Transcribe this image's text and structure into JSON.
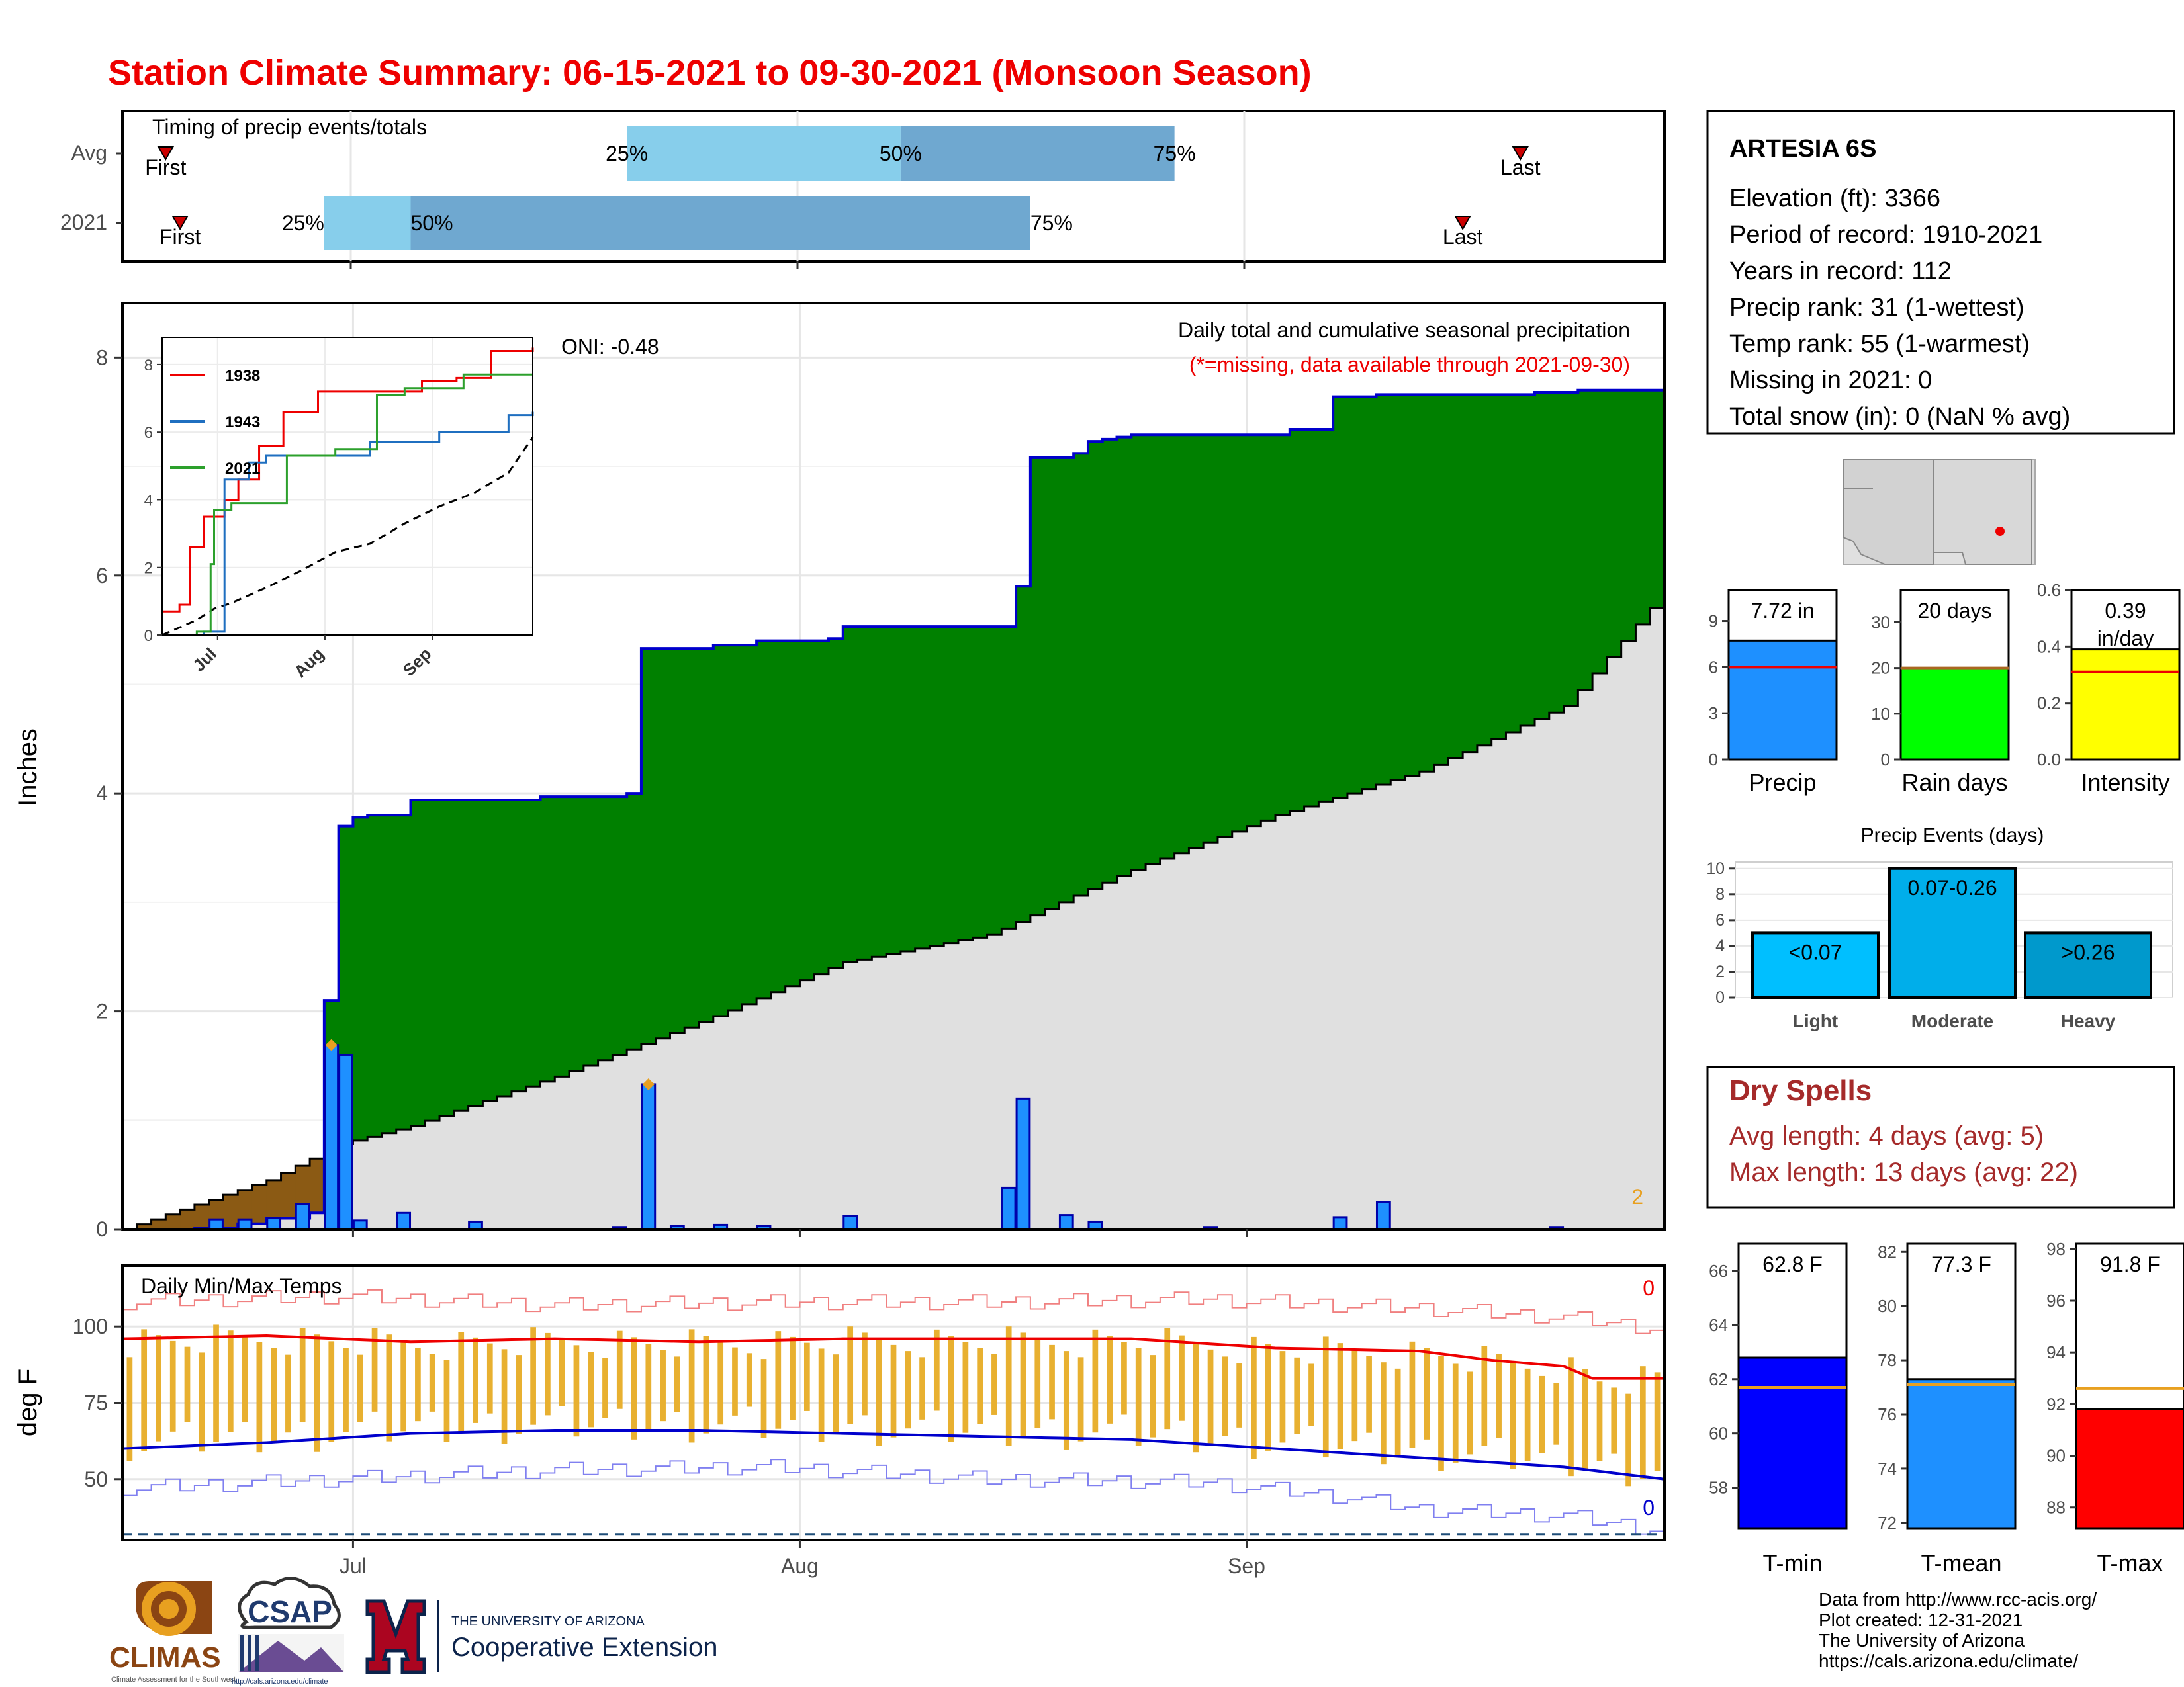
{
  "title": "Station Climate Summary: 06-15-2021 to 09-30-2021 (Monsoon Season)",
  "colors": {
    "title": "#ee0000",
    "accum_fill": "#008000",
    "avg_fill": "#e0e0e0",
    "daily_bar": "#1e90ff",
    "brown": "#8b5a14",
    "bar_orange": "#e8b030",
    "tmax_line": "#ee0000",
    "tmin_line": "#0000cc",
    "q_light": "#87ceeb",
    "q_dark": "#6fa8d0",
    "dry_red": "#a52a2a"
  },
  "timing": {
    "title": "Timing of precip events/totals",
    "rows": [
      {
        "label": "Avg",
        "first": "First",
        "last": "Last",
        "q25": "25%",
        "q50": "50%",
        "q75": "75%",
        "first_date": "2021-06-18",
        "q25_date": "2021-07-20",
        "q50_date": "2021-08-08",
        "q75_date": "2021-08-27",
        "last_date": "2021-09-20"
      },
      {
        "label": "2021",
        "first": "First",
        "last": "Last",
        "q25": "25%",
        "q50": "50%",
        "q75": "75%",
        "first_date": "2021-06-19",
        "q25_date": "2021-06-29",
        "q50_date": "2021-07-05",
        "q75_date": "2021-08-17",
        "last_date": "2021-09-16"
      }
    ]
  },
  "main_chart": {
    "ylabel": "Inches",
    "ticks": [
      "0",
      "2",
      "4",
      "6",
      "8"
    ],
    "oni": "ONI: -0.48",
    "subtitle": "Daily total and cumulative seasonal precipitation",
    "missing_note": "(*=missing, data available through 2021-09-30)",
    "corner_count": "2",
    "x_ticks": [
      "Jul",
      "Aug",
      "Sep"
    ]
  },
  "chart_data": [
    {
      "type": "area",
      "title": "Daily total and cumulative seasonal precipitation",
      "ylabel": "Inches",
      "ylim": [
        0,
        8.5
      ],
      "x_range": [
        "2021-06-15",
        "2021-09-30"
      ],
      "cumulative_2021": [
        [
          0,
          0
        ],
        [
          5,
          0.01
        ],
        [
          8,
          0.05
        ],
        [
          10,
          0.1
        ],
        [
          13,
          0.15
        ],
        [
          14,
          2.1
        ],
        [
          15,
          3.7
        ],
        [
          16,
          3.78
        ],
        [
          17,
          3.8
        ],
        [
          20,
          3.94
        ],
        [
          29,
          3.97
        ],
        [
          35,
          4.0
        ],
        [
          36,
          5.33
        ],
        [
          41,
          5.36
        ],
        [
          44,
          5.4
        ],
        [
          49,
          5.42
        ],
        [
          50,
          5.53
        ],
        [
          61,
          5.53
        ],
        [
          62,
          5.9
        ],
        [
          63,
          7.08
        ],
        [
          66,
          7.12
        ],
        [
          67,
          7.23
        ],
        [
          68,
          7.25
        ],
        [
          69,
          7.27
        ],
        [
          70,
          7.29
        ],
        [
          81,
          7.34
        ],
        [
          84,
          7.64
        ],
        [
          87,
          7.66
        ],
        [
          98,
          7.68
        ],
        [
          101,
          7.7
        ],
        [
          107,
          7.72
        ]
      ],
      "normal_cumulative": [
        [
          0,
          0
        ],
        [
          10,
          0.45
        ],
        [
          15,
          0.78
        ],
        [
          20,
          0.95
        ],
        [
          30,
          1.4
        ],
        [
          40,
          1.9
        ],
        [
          50,
          2.45
        ],
        [
          60,
          2.7
        ],
        [
          70,
          3.3
        ],
        [
          80,
          3.8
        ],
        [
          90,
          4.2
        ],
        [
          100,
          4.8
        ],
        [
          107,
          5.85
        ]
      ],
      "daily_precip": [
        [
          5,
          0.01
        ],
        [
          6,
          0.09
        ],
        [
          8,
          0.09
        ],
        [
          10,
          0.1
        ],
        [
          12,
          0.23
        ],
        [
          14,
          1.69
        ],
        [
          15,
          1.6
        ],
        [
          16,
          0.08
        ],
        [
          19,
          0.15
        ],
        [
          24,
          0.07
        ],
        [
          34,
          0.02
        ],
        [
          36,
          1.33
        ],
        [
          38,
          0.03
        ],
        [
          41,
          0.04
        ],
        [
          44,
          0.03
        ],
        [
          50,
          0.12
        ],
        [
          61,
          0.38
        ],
        [
          62,
          1.2
        ],
        [
          65,
          0.13
        ],
        [
          67,
          0.07
        ],
        [
          75,
          0.02
        ],
        [
          84,
          0.11
        ],
        [
          87,
          0.25
        ],
        [
          99,
          0.02
        ]
      ]
    },
    {
      "type": "line",
      "title": "Daily Min/Max Temps",
      "ylabel": "deg F",
      "ylim": [
        30,
        120
      ],
      "yticks": [
        50,
        75,
        100
      ],
      "count_max": "0",
      "count_min": "0",
      "tmax_avg_smooth": [
        [
          0,
          96
        ],
        [
          10,
          97
        ],
        [
          20,
          95
        ],
        [
          30,
          96
        ],
        [
          40,
          95
        ],
        [
          50,
          96
        ],
        [
          60,
          96
        ],
        [
          70,
          96
        ],
        [
          80,
          93
        ],
        [
          90,
          92
        ],
        [
          95,
          89
        ],
        [
          100,
          87
        ],
        [
          102,
          83
        ],
        [
          107,
          83
        ]
      ],
      "tmin_avg_smooth": [
        [
          0,
          60
        ],
        [
          10,
          62
        ],
        [
          20,
          65
        ],
        [
          30,
          66
        ],
        [
          40,
          66
        ],
        [
          50,
          65
        ],
        [
          60,
          64
        ],
        [
          70,
          63
        ],
        [
          80,
          60
        ],
        [
          90,
          57
        ],
        [
          100,
          54
        ],
        [
          107,
          50
        ]
      ],
      "tmax_record": [
        [
          0,
          108
        ],
        [
          15,
          110
        ],
        [
          30,
          107
        ],
        [
          45,
          108
        ],
        [
          60,
          108
        ],
        [
          75,
          109
        ],
        [
          90,
          106
        ],
        [
          100,
          103
        ],
        [
          107,
          99
        ]
      ],
      "tmin_record": [
        [
          0,
          47
        ],
        [
          15,
          50
        ],
        [
          30,
          53
        ],
        [
          45,
          54
        ],
        [
          60,
          50
        ],
        [
          75,
          49
        ],
        [
          85,
          44
        ],
        [
          90,
          40
        ],
        [
          100,
          38
        ],
        [
          107,
          33
        ]
      ],
      "freeze_line": 32
    },
    {
      "type": "line",
      "title": "Cumulative precipitation comparison",
      "series": [
        {
          "name": "1938",
          "points": [
            [
              0,
              0.7
            ],
            [
              5,
              0.9
            ],
            [
              8,
              2.6
            ],
            [
              12,
              3.5
            ],
            [
              18,
              4.0
            ],
            [
              22,
              4.6
            ],
            [
              28,
              5.6
            ],
            [
              35,
              6.6
            ],
            [
              45,
              7.2
            ],
            [
              75,
              7.5
            ],
            [
              85,
              7.6
            ],
            [
              95,
              8.4
            ],
            [
              107,
              8.5
            ]
          ]
        },
        {
          "name": "1943",
          "points": [
            [
              0,
              0
            ],
            [
              12,
              0.1
            ],
            [
              18,
              4.6
            ],
            [
              25,
              5.1
            ],
            [
              30,
              5.3
            ],
            [
              45,
              5.3
            ],
            [
              60,
              5.7
            ],
            [
              80,
              6.0
            ],
            [
              100,
              6.5
            ],
            [
              107,
              6.6
            ]
          ]
        },
        {
          "name": "2021",
          "points": [
            [
              0,
              0
            ],
            [
              10,
              0.1
            ],
            [
              14,
              2.1
            ],
            [
              15,
              3.7
            ],
            [
              20,
              3.9
            ],
            [
              36,
              5.3
            ],
            [
              50,
              5.5
            ],
            [
              62,
              7.1
            ],
            [
              70,
              7.3
            ],
            [
              87,
              7.7
            ],
            [
              107,
              7.7
            ]
          ]
        }
      ],
      "x_ticks": [
        "Jul",
        "Aug",
        "Sep"
      ],
      "y_ticks": [
        "0",
        "2",
        "4",
        "6",
        "8"
      ]
    },
    {
      "type": "bar",
      "title": "Precip",
      "value": 7.72,
      "value_label": "7.72 in",
      "avg": 6.0,
      "ylim": [
        0,
        11
      ],
      "yticks": [
        "0",
        "3",
        "6",
        "9"
      ]
    },
    {
      "type": "bar",
      "title": "Rain days",
      "value": 20,
      "value_label": "20 days",
      "avg": 20,
      "ylim": [
        0,
        37
      ],
      "yticks": [
        "0",
        "10",
        "20",
        "30"
      ]
    },
    {
      "type": "bar",
      "title": "Intensity",
      "value": 0.39,
      "value_label": "0.39 in/day",
      "avg": 0.31,
      "ylim": [
        0,
        0.6
      ],
      "yticks": [
        "0.0",
        "0.2",
        "0.4",
        "0.6"
      ]
    },
    {
      "type": "bar",
      "title": "Precip Events (days)",
      "categories": [
        "Light",
        "Moderate",
        "Heavy"
      ],
      "labels": [
        "<0.07",
        "0.07-0.26",
        ">0.26"
      ],
      "values": [
        5,
        10,
        5
      ],
      "ylim": [
        0,
        10.5
      ],
      "yticks": [
        "0",
        "2",
        "4",
        "6",
        "8",
        "10"
      ]
    },
    {
      "type": "bar",
      "title": "T-min",
      "value": 62.8,
      "value_label": "62.8 F",
      "avg": 61.7,
      "ylim": [
        56.5,
        67
      ],
      "yticks": [
        "58",
        "60",
        "62",
        "64",
        "66"
      ]
    },
    {
      "type": "bar",
      "title": "T-mean",
      "value": 77.3,
      "value_label": "77.3 F",
      "avg": 77.1,
      "ylim": [
        71.8,
        82.3
      ],
      "yticks": [
        "72",
        "74",
        "76",
        "78",
        "80",
        "82"
      ]
    },
    {
      "type": "bar",
      "title": "T-max",
      "value": 91.8,
      "value_label": "91.8 F",
      "avg": 92.6,
      "ylim": [
        87.2,
        98.2
      ],
      "yticks": [
        "88",
        "90",
        "92",
        "94",
        "96",
        "98"
      ]
    }
  ],
  "station": {
    "name": "ARTESIA 6S",
    "elevation": "Elevation (ft): 3366",
    "period": "Period of record: 1910-2021",
    "years": "Years in record: 112",
    "precip_rank": "Precip rank: 31 (1-wettest)",
    "temp_rank": "Temp rank: 55 (1-warmest)",
    "missing": "Missing in 2021: 0",
    "snow": "Total snow (in): 0 (NaN % avg)"
  },
  "dry_spells": {
    "title": "Dry Spells",
    "avg_length": "Avg length: 4 days (avg: 5)",
    "max_length": "Max length: 13 days (avg: 22)"
  },
  "footer": {
    "source": "Data from http://www.rcc-acis.org/",
    "created": "Plot created: 12-31-2021",
    "org": "The University of Arizona",
    "url": "https://cals.arizona.edu/climate/"
  },
  "logos": {
    "climas": "CLIMAS",
    "climas_sub": "Climate Assessment for the Southwest",
    "csap": "CSAP",
    "csap_url": "http://cals.arizona.edu/climate",
    "ua_line1": "THE UNIVERSITY OF ARIZONA",
    "ua_line2": "Cooperative Extension"
  }
}
